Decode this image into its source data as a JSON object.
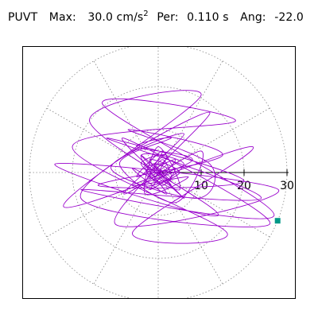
{
  "header": {
    "component": "PUVT",
    "max_label": "Max:",
    "max_value": "30.0",
    "max_unit": "cm/s",
    "max_unit_exp": "2",
    "period_label": "Per:",
    "period_value": "0.110 s",
    "angle_label": "Ang:",
    "angle_value": "-22.0"
  },
  "chart_data": {
    "type": "polar-orbit",
    "title": "",
    "rlim": [
      0,
      30
    ],
    "radial_ticks": [
      "10",
      "20",
      "30"
    ],
    "radial_tick_values": [
      10,
      20,
      30
    ],
    "angular_spokes_deg": [
      0,
      30,
      60,
      90,
      120,
      150,
      180,
      210,
      240,
      270,
      300,
      330
    ],
    "grid": true,
    "grid_style": "dotted",
    "max_radius": 30.0,
    "max_angle_deg": -22.0,
    "series": [
      {
        "color": "#9900cc",
        "points": [
          [
            0,
            0
          ],
          [
            2,
            1
          ],
          [
            -1,
            2
          ],
          [
            3,
            -1
          ],
          [
            1,
            3
          ],
          [
            -2,
            -1
          ],
          [
            2,
            2
          ],
          [
            -3,
            1
          ],
          [
            1,
            -3
          ],
          [
            4,
            1
          ],
          [
            -1,
            -2
          ],
          [
            2,
            4
          ],
          [
            -4,
            2
          ],
          [
            3,
            -3
          ],
          [
            -2,
            3
          ],
          [
            5,
            0
          ],
          [
            -3,
            -3
          ],
          [
            1,
            5
          ],
          [
            -5,
            -1
          ],
          [
            4,
            3
          ],
          [
            -2,
            -4
          ],
          [
            6,
            2
          ],
          [
            -4,
            4
          ],
          [
            2,
            -5
          ],
          [
            -6,
            1
          ],
          [
            5,
            -4
          ],
          [
            0,
            6
          ],
          [
            -3,
            -5
          ],
          [
            7,
            -1
          ],
          [
            -6,
            -3
          ],
          [
            8,
            3
          ],
          [
            -5,
            6
          ],
          [
            3,
            8
          ],
          [
            -9,
            2
          ],
          [
            4,
            -7
          ],
          [
            10,
            5
          ],
          [
            -8,
            -5
          ],
          [
            6,
            9
          ],
          [
            -11,
            1
          ],
          [
            9,
            -6
          ],
          [
            12,
            2
          ],
          [
            -7,
            10
          ],
          [
            15,
            4
          ],
          [
            -14,
            -3
          ],
          [
            20,
            -2
          ],
          [
            -12,
            8
          ],
          [
            24,
            -6
          ],
          [
            -18,
            -4
          ],
          [
            27,
            -10
          ],
          [
            -13,
            16
          ],
          [
            18,
            12
          ],
          [
            -20,
            6
          ],
          [
            16,
            -14
          ],
          [
            -6,
            -14
          ],
          [
            22,
            6
          ],
          [
            -22,
            -8
          ],
          [
            10,
            18
          ],
          [
            -16,
            12
          ],
          [
            14,
            -10
          ],
          [
            -24,
            2
          ],
          [
            28,
            -4
          ],
          [
            -10,
            -12
          ],
          [
            12,
            14
          ],
          [
            -18,
            -6
          ],
          [
            26,
            -12
          ],
          [
            -8,
            8
          ],
          [
            6,
            -6
          ],
          [
            -4,
            4
          ],
          [
            3,
            -2
          ],
          [
            0,
            0
          ]
        ]
      }
    ],
    "markers": [
      {
        "color": "#009988",
        "shape": "square",
        "r": 30.0,
        "angle_deg": -22.0
      }
    ]
  }
}
